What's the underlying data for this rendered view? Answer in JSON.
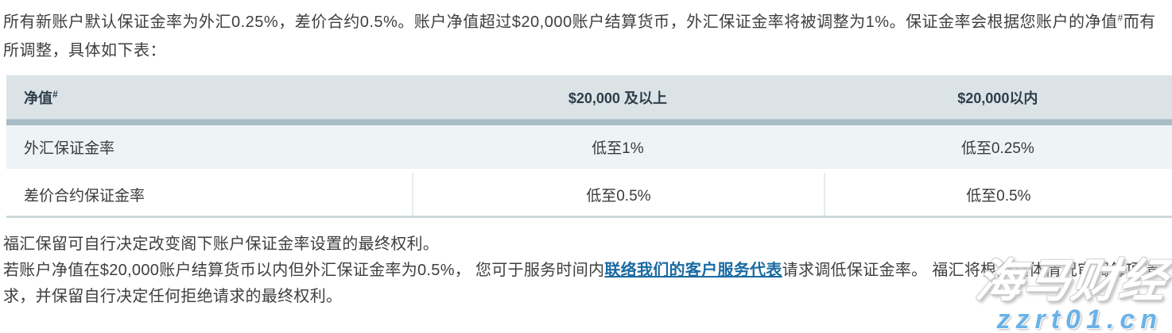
{
  "intro": {
    "part1": "所有新账户默认保证金率为外汇0.25%，差价合约0.5%。账户净值超过$20,000账户结算货币，外汇保证金率将被调整为1%。保证金率会根据您账户的净值",
    "sup": "#",
    "part2": "而有所调整，具体如下表："
  },
  "table": {
    "headers": {
      "col1_label": "净值",
      "col1_sup": "#",
      "col2": "$20,000 及以上",
      "col3": "$20,000以内"
    },
    "rows": [
      {
        "label": "外汇保证金率",
        "above": "低至1%",
        "within": "低至0.25%"
      },
      {
        "label": "差价合约保证金率",
        "above": "低至0.5%",
        "within": "低至0.5%"
      }
    ]
  },
  "notes": {
    "note1": "福汇保留可自行决定改变阁下账户保证金率设置的最终权利。",
    "note2_before_link": "若账户净值在$20,000账户结算货币以内但外汇保证金率为0.5%， 您可于服务时间内",
    "note2_link": "联络我们的客户服务代表",
    "note2_after_link": "请求调低保证金率。 福汇将根据具体情况审阅每项请求，并保留自行决定任何拒绝请求的最终权利。"
  },
  "watermark": {
    "brand": "海马财经",
    "url": "zzrt01.cn"
  },
  "colors": {
    "header_bg": "#dbe3e7",
    "divider_bar": "#a9bbc4",
    "row1_bg": "#eef3f5",
    "link_blue": "#1a6ba3",
    "watermark_blue": "#6ab2e8"
  }
}
